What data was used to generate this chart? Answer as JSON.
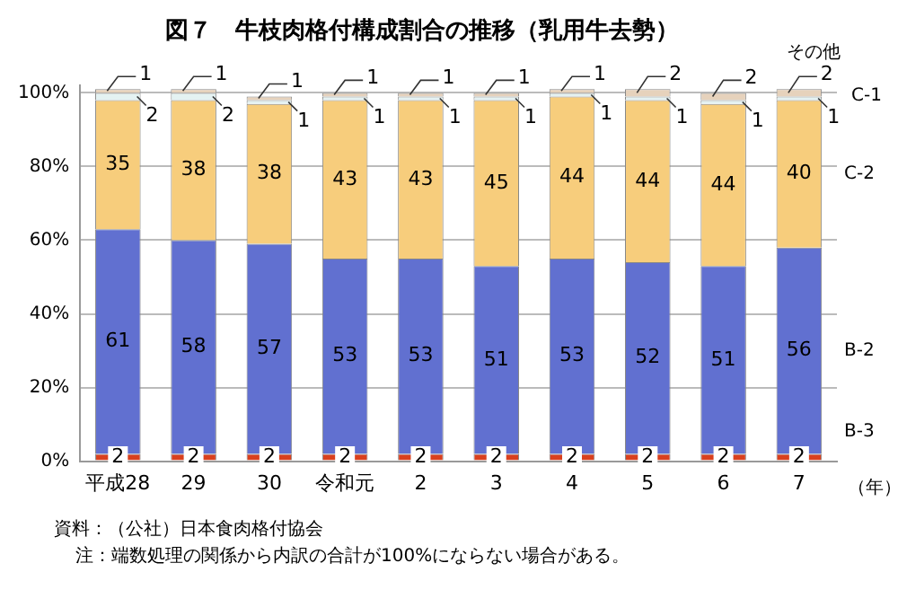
{
  "chart_data": {
    "type": "bar",
    "stacked": true,
    "title": "図７　牛枝肉格付構成割合の推移（乳用牛去勢）",
    "xlabel": "（年）",
    "categories": [
      "平成28",
      "29",
      "30",
      "令和元",
      "2",
      "3",
      "4",
      "5",
      "6",
      "7"
    ],
    "series": [
      {
        "name": "B-3",
        "color": "#d9401e",
        "values": [
          2,
          2,
          2,
          2,
          2,
          2,
          2,
          2,
          2,
          2
        ]
      },
      {
        "name": "B-2",
        "color": "#6170d0",
        "values": [
          61,
          58,
          57,
          53,
          53,
          51,
          53,
          52,
          51,
          56
        ]
      },
      {
        "name": "C-2",
        "color": "#f7cd7c",
        "values": [
          35,
          38,
          38,
          43,
          43,
          45,
          44,
          44,
          44,
          40
        ]
      },
      {
        "name": "C-1",
        "color": "#e4f2f2",
        "values": [
          2,
          2,
          1,
          1,
          1,
          1,
          1,
          1,
          1,
          1
        ]
      },
      {
        "name": "その他",
        "color": "#e6d2bc",
        "values": [
          1,
          1,
          1,
          1,
          1,
          1,
          1,
          2,
          2,
          2
        ]
      }
    ],
    "ylim": [
      0,
      102
    ],
    "yticks": [
      {
        "value": 0,
        "label": "0%"
      },
      {
        "value": 20,
        "label": "20%"
      },
      {
        "value": 40,
        "label": "40%"
      },
      {
        "value": 60,
        "label": "60%"
      },
      {
        "value": 80,
        "label": "80%"
      },
      {
        "value": 100,
        "label": "100%"
      }
    ],
    "grid": "y",
    "data_labels": true,
    "annotations": [
      "資料：（公社）日本食肉格付協会",
      "注：端数処理の関係から内訳の合計が100%にならない場合がある。"
    ]
  }
}
